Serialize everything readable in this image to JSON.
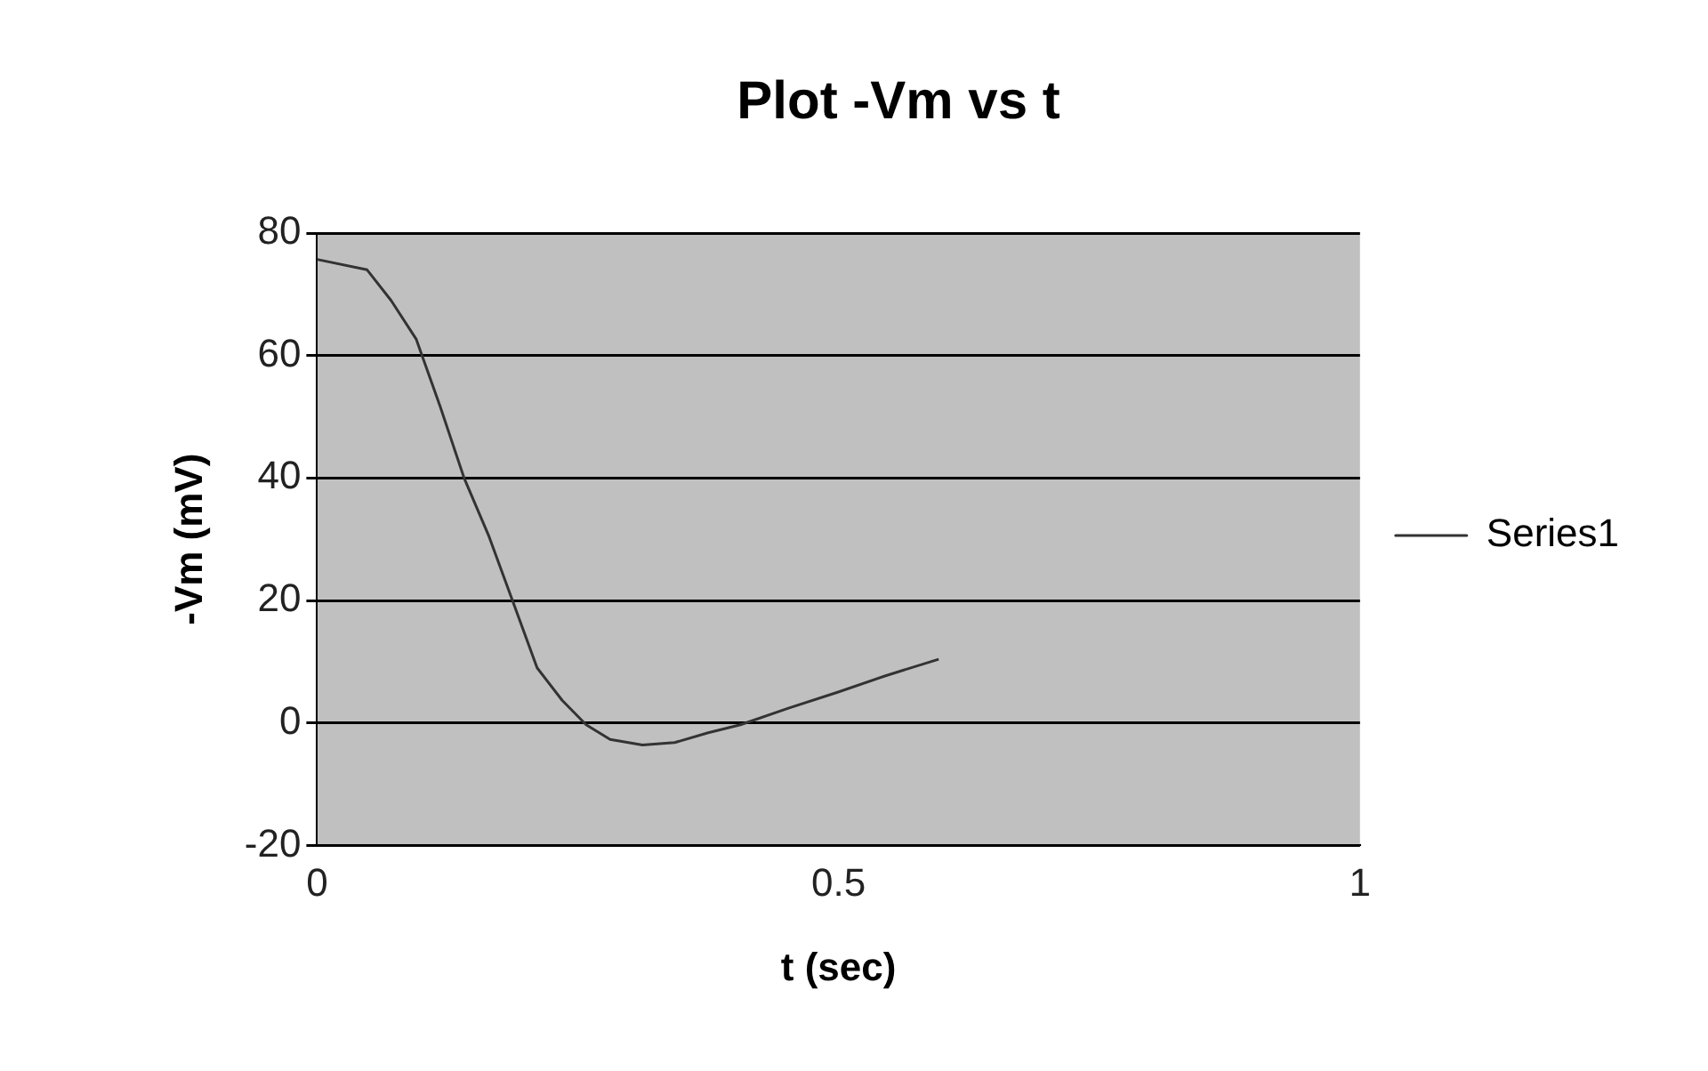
{
  "chart_data": {
    "type": "line",
    "title": "Plot -Vm vs t",
    "xlabel": "t (sec)",
    "ylabel": "-Vm (mV)",
    "series": [
      {
        "name": "Series1",
        "color": "#333333",
        "x": [
          0,
          0.048,
          0.071,
          0.095,
          0.118,
          0.141,
          0.165,
          0.188,
          0.211,
          0.235,
          0.258,
          0.281,
          0.312,
          0.343,
          0.375,
          0.406,
          0.452,
          0.499,
          0.545,
          0.596
        ],
        "values": [
          75.7,
          74,
          69,
          62.7,
          51.7,
          40,
          30.4,
          19.7,
          9,
          3.7,
          -0.3,
          -2.7,
          -3.6,
          -3.2,
          -1.6,
          -0.3,
          2.4,
          5,
          7.7,
          10.4
        ]
      }
    ],
    "xlim": [
      0,
      1
    ],
    "xticks": [
      0,
      0.5,
      1
    ],
    "ylim": [
      -20,
      80
    ],
    "yticks": [
      -20,
      0,
      20,
      40,
      60,
      80
    ],
    "grid": "y",
    "legend": "right",
    "marker": "none",
    "line_style": "solid"
  }
}
